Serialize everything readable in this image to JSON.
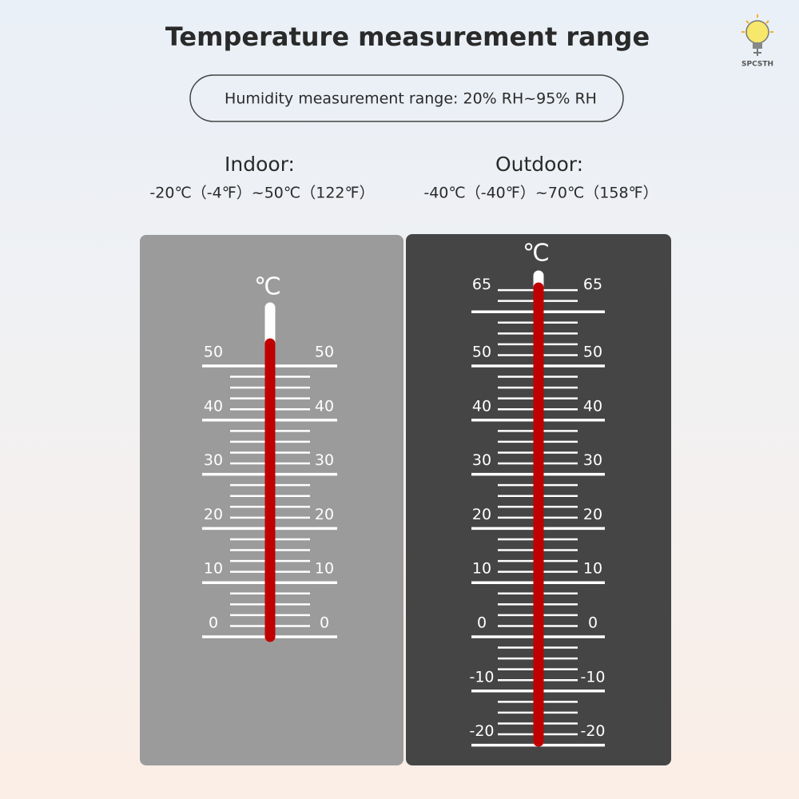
{
  "brand": "SPCSTH",
  "title": "Temperature measurement range",
  "humidity": "Humidity measurement range: 20% RH~95% RH",
  "ranges": [
    {
      "label": "Indoor:",
      "text": "-20℃（-4℉）~50℃（122℉）"
    },
    {
      "label": "Outdoor:",
      "text": "-40℃（-40℉）~70℃（158℉）"
    }
  ],
  "thermometers": [
    {
      "unit": "℃",
      "ticks": [
        50,
        40,
        30,
        20,
        10,
        0
      ]
    },
    {
      "unit": "℃",
      "ticks": [
        65,
        50,
        40,
        30,
        20,
        10,
        0,
        -10,
        -20
      ]
    }
  ]
}
